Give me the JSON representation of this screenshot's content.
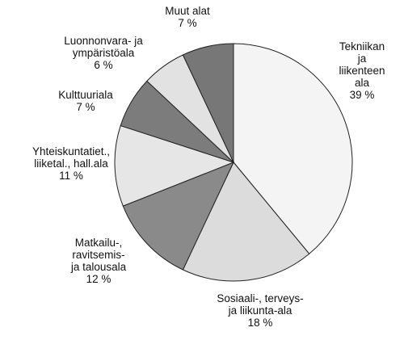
{
  "chart_data": {
    "type": "pie",
    "categories": [
      "Tekniikan ja\nliikenteen ala",
      "Sosiaali-, terveys-\nja liikunta-ala",
      "Matkailu-,\nravitsemis-\nja talousala",
      "Yhteiskuntatiet.,\nliiketal., hall.ala",
      "Kulttuuriala",
      "Luonnonvara- ja\nympäristöala",
      "Muut alat"
    ],
    "values": [
      39,
      18,
      12,
      11,
      7,
      6,
      7
    ],
    "value_labels": [
      "39 %",
      "18 %",
      "12 %",
      "11 %",
      "7 %",
      "6 %",
      "7 %"
    ],
    "colors": [
      "#f4f4f4",
      "#dcdcdc",
      "#8a8a8a",
      "#e6e6e6",
      "#7c7c7c",
      "#e2e2e2",
      "#777777"
    ]
  }
}
